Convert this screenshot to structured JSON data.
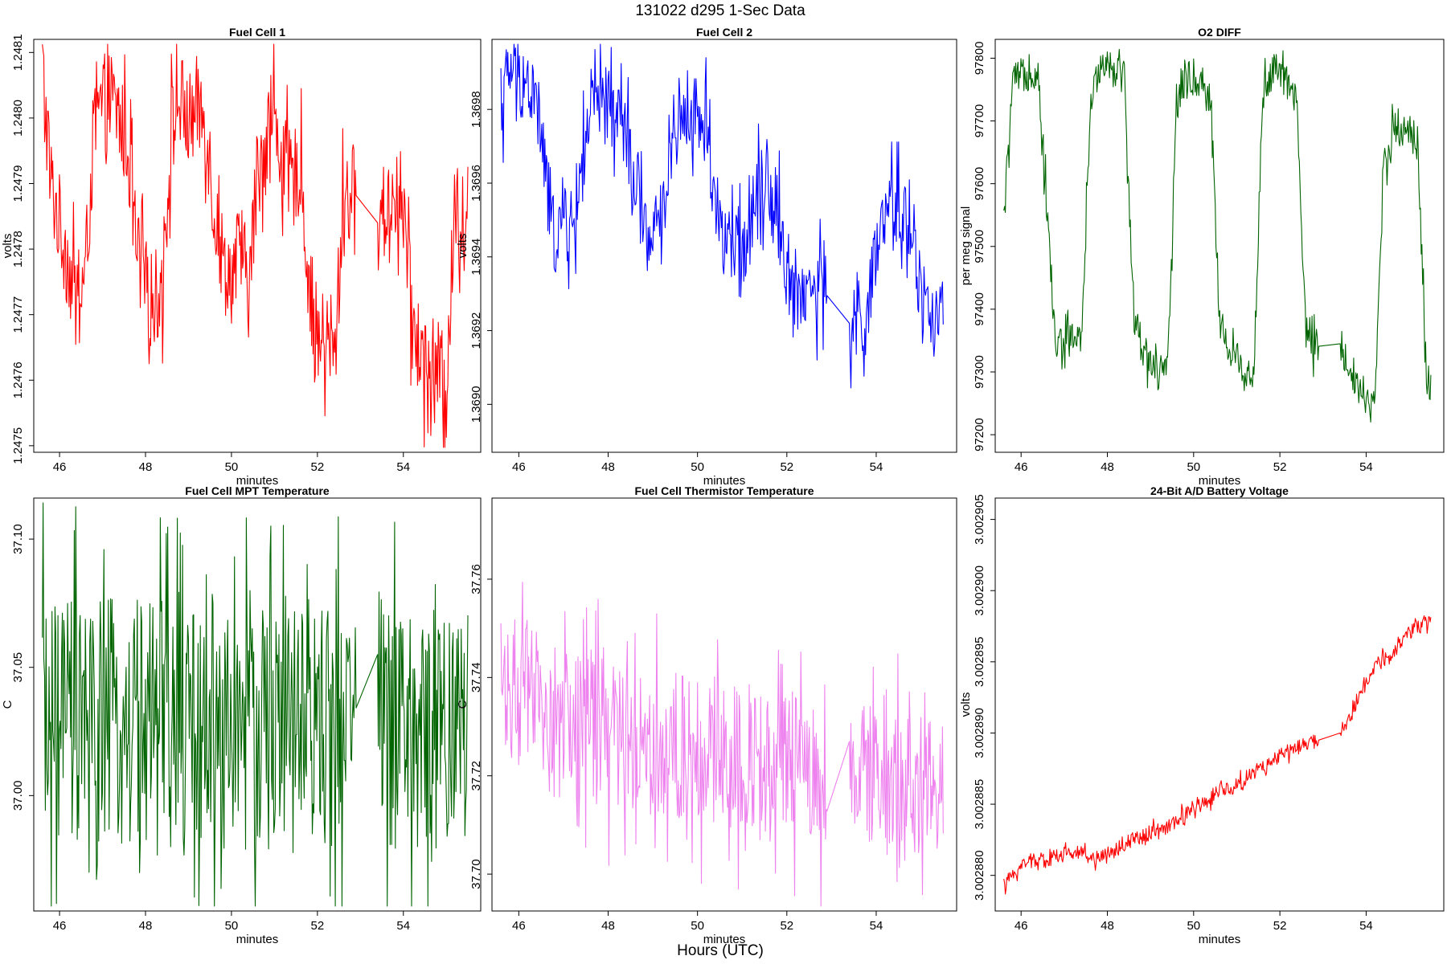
{
  "figure": {
    "title": "131022   d295   1-Sec Data",
    "bottom_label": "Hours (UTC)"
  },
  "chart_data": [
    {
      "type": "line",
      "title": "Fuel Cell 1",
      "xlabel": "minutes",
      "ylabel": "volts",
      "color": "#ff0000",
      "xlim": [
        45.4,
        55.8
      ],
      "ylim": [
        1.24749,
        1.24812
      ],
      "x_ticks": [
        "46",
        "48",
        "50",
        "52",
        "54"
      ],
      "y_ticks": [
        "1.2475",
        "1.2476",
        "1.2477",
        "1.2478",
        "1.2479",
        "1.2480",
        "1.2481"
      ],
      "gap": [
        52.9,
        53.4
      ],
      "x": [
        45.6,
        45.8,
        46.0,
        46.2,
        46.4,
        46.6,
        46.8,
        47.0,
        47.2,
        47.4,
        47.6,
        47.8,
        48.0,
        48.2,
        48.4,
        48.6,
        48.8,
        49.0,
        49.2,
        49.4,
        49.6,
        49.8,
        50.0,
        50.2,
        50.4,
        50.6,
        50.8,
        51.0,
        51.2,
        51.4,
        51.6,
        51.8,
        52.0,
        52.2,
        52.4,
        52.6,
        52.8,
        53.4,
        53.6,
        53.8,
        54.0,
        54.2,
        54.4,
        54.6,
        54.8,
        55.0,
        55.2,
        55.4,
        55.5
      ],
      "values": [
        1.24808,
        1.2479,
        1.24784,
        1.24778,
        1.24771,
        1.24776,
        1.24798,
        1.24802,
        1.24803,
        1.248,
        1.24795,
        1.24779,
        1.24774,
        1.24772,
        1.24775,
        1.24798,
        1.24803,
        1.24799,
        1.24802,
        1.248,
        1.24786,
        1.24778,
        1.24776,
        1.2478,
        1.24774,
        1.2479,
        1.24798,
        1.248,
        1.24793,
        1.2479,
        1.24793,
        1.24775,
        1.24766,
        1.24766,
        1.24763,
        1.24787,
        1.24789,
        1.24784,
        1.24786,
        1.24789,
        1.24787,
        1.24769,
        1.24764,
        1.24762,
        1.24762,
        1.24758,
        1.24787,
        1.24784,
        1.24786
      ]
    },
    {
      "type": "line",
      "title": "Fuel Cell 2",
      "xlabel": "minutes",
      "ylabel": "volts",
      "color": "#0000ff",
      "xlim": [
        45.4,
        55.8
      ],
      "ylim": [
        1.36887,
        1.36999
      ],
      "x_ticks": [
        "46",
        "48",
        "50",
        "52",
        "54"
      ],
      "y_ticks": [
        "1.3690",
        "1.3692",
        "1.3694",
        "1.3696",
        "1.3698"
      ],
      "gap": [
        52.9,
        53.4
      ],
      "x": [
        45.6,
        45.8,
        46.0,
        46.2,
        46.4,
        46.6,
        46.8,
        47.0,
        47.2,
        47.4,
        47.6,
        47.8,
        48.0,
        48.2,
        48.4,
        48.6,
        48.8,
        49.0,
        49.2,
        49.4,
        49.6,
        49.8,
        50.0,
        50.2,
        50.4,
        50.6,
        50.8,
        51.0,
        51.2,
        51.4,
        51.6,
        51.8,
        52.0,
        52.2,
        52.4,
        52.6,
        52.8,
        53.4,
        53.6,
        53.8,
        54.0,
        54.2,
        54.4,
        54.6,
        54.8,
        55.0,
        55.2,
        55.4,
        55.5
      ],
      "values": [
        1.36981,
        1.36991,
        1.36989,
        1.36986,
        1.36982,
        1.36962,
        1.36945,
        1.36951,
        1.36947,
        1.36963,
        1.3698,
        1.3698,
        1.36981,
        1.36979,
        1.36974,
        1.36956,
        1.36949,
        1.36944,
        1.36949,
        1.36972,
        1.36978,
        1.3698,
        1.36978,
        1.36976,
        1.36955,
        1.36944,
        1.36941,
        1.3694,
        1.36955,
        1.36962,
        1.36961,
        1.36952,
        1.36935,
        1.36931,
        1.36931,
        1.36931,
        1.36931,
        1.36922,
        1.36921,
        1.36924,
        1.3694,
        1.3695,
        1.36952,
        1.36952,
        1.36949,
        1.36929,
        1.36925,
        1.36922,
        1.36927
      ]
    },
    {
      "type": "line",
      "title": "O2 DIFF",
      "xlabel": "minutes",
      "ylabel": "per meg signal",
      "color": "#006400",
      "xlim": [
        45.4,
        55.8
      ],
      "ylim": [
        97172,
        97830
      ],
      "x_ticks": [
        "46",
        "48",
        "50",
        "52",
        "54"
      ],
      "y_ticks": [
        "97200",
        "97300",
        "97400",
        "97500",
        "97600",
        "97700",
        "97800"
      ],
      "gap": [
        52.9,
        53.4
      ],
      "x": [
        45.6,
        45.8,
        46.0,
        46.2,
        46.4,
        46.6,
        46.8,
        47.0,
        47.2,
        47.4,
        47.6,
        47.8,
        48.0,
        48.2,
        48.4,
        48.6,
        48.8,
        49.0,
        49.2,
        49.4,
        49.6,
        49.8,
        50.0,
        50.2,
        50.4,
        50.6,
        50.8,
        51.0,
        51.2,
        51.4,
        51.6,
        51.8,
        52.0,
        52.2,
        52.4,
        52.6,
        52.8,
        53.4,
        53.6,
        53.8,
        54.0,
        54.2,
        54.4,
        54.6,
        54.8,
        55.0,
        55.2,
        55.4,
        55.5
      ],
      "values": [
        97540,
        97760,
        97770,
        97780,
        97775,
        97560,
        97340,
        97350,
        97360,
        97340,
        97710,
        97790,
        97795,
        97785,
        97770,
        97400,
        97340,
        97320,
        97300,
        97300,
        97720,
        97770,
        97770,
        97760,
        97740,
        97380,
        97340,
        97320,
        97300,
        97300,
        97740,
        97780,
        97775,
        97760,
        97720,
        97360,
        97340,
        97345,
        97310,
        97280,
        97260,
        97240,
        97630,
        97680,
        97690,
        97690,
        97660,
        97280,
        97290
      ]
    },
    {
      "type": "line",
      "title": "Fuel Cell MPT Temperature",
      "xlabel": "minutes",
      "ylabel": "C",
      "color": "#006400",
      "xlim": [
        45.4,
        55.8
      ],
      "ylim": [
        36.955,
        37.116
      ],
      "x_ticks": [
        "46",
        "48",
        "50",
        "52",
        "54"
      ],
      "y_ticks": [
        "37.00",
        "37.05",
        "37.10"
      ],
      "gap": [
        52.9,
        53.4
      ],
      "x": [
        45.6,
        45.8,
        46.0,
        46.2,
        46.4,
        46.6,
        46.8,
        47.0,
        47.2,
        47.4,
        47.6,
        47.8,
        48.0,
        48.2,
        48.4,
        48.6,
        48.8,
        49.0,
        49.2,
        49.4,
        49.6,
        49.8,
        50.0,
        50.2,
        50.4,
        50.6,
        50.8,
        51.0,
        51.2,
        51.4,
        51.6,
        51.8,
        52.0,
        52.2,
        52.4,
        52.6,
        52.8,
        53.4,
        53.6,
        53.8,
        54.0,
        54.2,
        54.4,
        54.6,
        54.8,
        55.0,
        55.2,
        55.4,
        55.5
      ],
      "values": [
        37.03,
        37.028,
        37.025,
        37.027,
        37.03,
        37.026,
        37.024,
        37.028,
        37.03,
        37.027,
        37.025,
        37.029,
        37.027,
        37.026,
        37.03,
        37.028,
        37.025,
        37.027,
        37.029,
        37.026,
        37.028,
        37.027,
        37.025,
        37.03,
        37.027,
        37.028,
        37.026,
        37.029,
        37.027,
        37.025,
        37.028,
        37.03,
        37.026,
        37.027,
        37.029,
        37.025,
        37.03,
        37.055,
        37.03,
        37.024,
        37.026,
        37.022,
        37.025,
        37.02,
        37.026,
        37.022,
        37.03,
        37.022,
        37.03
      ]
    },
    {
      "type": "line",
      "title": "Fuel Cell Thermistor Temperature",
      "xlabel": "minutes",
      "ylabel": "C",
      "color": "#ee82ee",
      "xlim": [
        45.4,
        55.8
      ],
      "ylim": [
        37.6925,
        37.7765
      ],
      "x_ticks": [
        "46",
        "48",
        "50",
        "52",
        "54"
      ],
      "y_ticks": [
        "37.70",
        "37.72",
        "37.74",
        "37.76"
      ],
      "gap": [
        52.9,
        53.4
      ],
      "x": [
        45.6,
        45.8,
        46.0,
        46.2,
        46.4,
        46.6,
        46.8,
        47.0,
        47.2,
        47.4,
        47.6,
        47.8,
        48.0,
        48.2,
        48.4,
        48.6,
        48.8,
        49.0,
        49.2,
        49.4,
        49.6,
        49.8,
        50.0,
        50.2,
        50.4,
        50.6,
        50.8,
        51.0,
        51.2,
        51.4,
        51.6,
        51.8,
        52.0,
        52.2,
        52.4,
        52.6,
        52.8,
        53.4,
        53.6,
        53.8,
        54.0,
        54.2,
        54.4,
        54.6,
        54.8,
        55.0,
        55.2,
        55.4,
        55.5
      ],
      "values": [
        37.74,
        37.738,
        37.737,
        37.735,
        37.735,
        37.733,
        37.732,
        37.732,
        37.73,
        37.731,
        37.73,
        37.729,
        37.729,
        37.728,
        37.728,
        37.728,
        37.727,
        37.727,
        37.727,
        37.726,
        37.726,
        37.726,
        37.725,
        37.725,
        37.725,
        37.724,
        37.724,
        37.724,
        37.724,
        37.723,
        37.723,
        37.722,
        37.722,
        37.722,
        37.721,
        37.721,
        37.71,
        37.727,
        37.72,
        37.719,
        37.719,
        37.718,
        37.718,
        37.718,
        37.717,
        37.717,
        37.717,
        37.716,
        37.716
      ]
    },
    {
      "type": "line",
      "title": "24-Bit A/D Battery Voltage",
      "xlabel": "minutes",
      "ylabel": "volts",
      "color": "#ff0000",
      "xlim": [
        45.4,
        55.8
      ],
      "ylim": [
        3.0028775,
        3.0029065
      ],
      "x_ticks": [
        "46",
        "48",
        "50",
        "52",
        "54"
      ],
      "y_ticks": [
        "3.002880",
        "3.002885",
        "3.002890",
        "3.002895",
        "3.002900",
        "3.002905"
      ],
      "gap": [
        52.9,
        53.4
      ],
      "x": [
        45.6,
        45.8,
        46.0,
        46.2,
        46.4,
        46.6,
        46.8,
        47.0,
        47.2,
        47.4,
        47.6,
        47.8,
        48.0,
        48.2,
        48.4,
        48.6,
        48.8,
        49.0,
        49.2,
        49.4,
        49.6,
        49.8,
        50.0,
        50.2,
        50.4,
        50.6,
        50.8,
        51.0,
        51.2,
        51.4,
        51.6,
        51.8,
        52.0,
        52.2,
        52.4,
        52.6,
        52.8,
        53.4,
        53.6,
        53.8,
        54.0,
        54.2,
        54.4,
        54.6,
        54.8,
        55.0,
        55.2,
        55.4,
        55.5
      ],
      "values": [
        3.002879,
        3.00288,
        3.0028808,
        3.002881,
        3.0028812,
        3.002881,
        3.0028814,
        3.0028815,
        3.0028817,
        3.0028815,
        3.0028812,
        3.0028813,
        3.0028815,
        3.0028818,
        3.0028822,
        3.0028825,
        3.0028828,
        3.002883,
        3.0028833,
        3.0028833,
        3.0028838,
        3.0028843,
        3.0028848,
        3.002885,
        3.0028855,
        3.002886,
        3.0028862,
        3.0028862,
        3.0028868,
        3.0028873,
        3.0028876,
        3.002888,
        3.0028883,
        3.0028887,
        3.002889,
        3.0028892,
        3.0028894,
        3.00289,
        3.002891,
        3.0028922,
        3.0028935,
        3.0028945,
        3.0028952,
        3.0028955,
        3.0028962,
        3.002897,
        3.0028975,
        3.0028978,
        3.002898
      ]
    }
  ]
}
